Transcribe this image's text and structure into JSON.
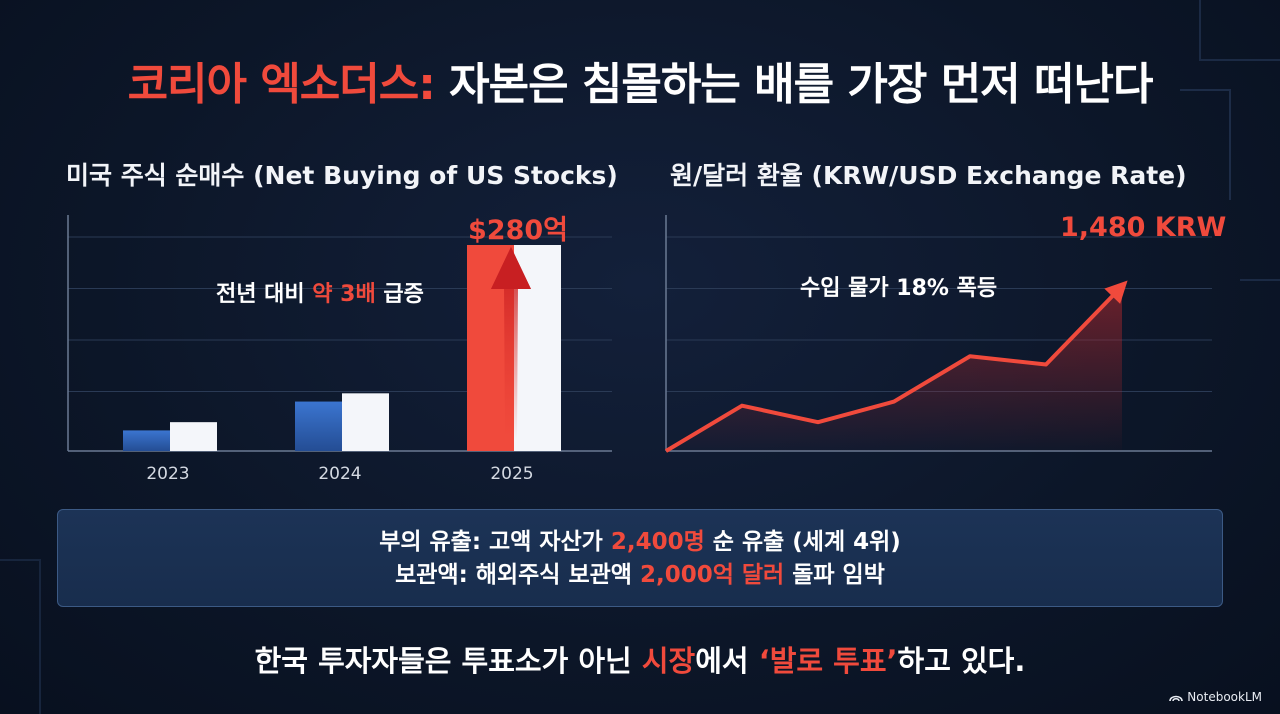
{
  "title": {
    "accent": "코리아 엑소더스:",
    "rest": " 자본은 침몰하는 배를 가장 먼저 떠난다"
  },
  "colors": {
    "accent": "#f04a3c",
    "blue": "#3468c0",
    "white_bar": "#f4f6fa",
    "grid": "#2a3a55"
  },
  "chart_data": [
    {
      "type": "bar",
      "title": "미국 주식 순매수 (Net Buying of US Stocks)",
      "categories": [
        "2023",
        "2024",
        "2025"
      ],
      "series": [
        {
          "name": "blue",
          "values": [
            10,
            24,
            100
          ]
        },
        {
          "name": "white",
          "values": [
            14,
            28,
            100
          ]
        }
      ],
      "ylim": [
        0,
        100
      ],
      "highlight_label": "$280억",
      "annotation": {
        "prefix": "전년 대비 ",
        "highlight": "약 3배",
        "suffix": " 급증"
      },
      "grid": true
    },
    {
      "type": "line",
      "title": "원/달러 환율 (KRW/USD Exchange Rate)",
      "x": [
        0,
        1,
        2,
        3,
        4,
        5,
        6
      ],
      "values": [
        0,
        22,
        14,
        24,
        46,
        42,
        80
      ],
      "ylim": [
        0,
        100
      ],
      "end_label": "1,480 KRW",
      "annotation": "수입 물가 18% 폭등",
      "grid": true
    }
  ],
  "info": {
    "line1": {
      "prefix": "부의 유출: 고액 자산가 ",
      "highlight": "2,400명",
      "suffix": " 순 유출 (세계 4위)"
    },
    "line2": {
      "prefix": "보관액: 해외주식 보관액 ",
      "highlight": "2,000억 달러",
      "suffix": " 돌파 임박"
    }
  },
  "bottom": {
    "prefix": "한국 투자자들은 투표소가 아닌 ",
    "highlight1": "시장",
    "middle": "에서 ",
    "highlight2": "‘발로 투표’",
    "suffix": "하고 있다."
  },
  "brand": {
    "icon": "notebooklm-icon",
    "label": "NotebookLM"
  }
}
